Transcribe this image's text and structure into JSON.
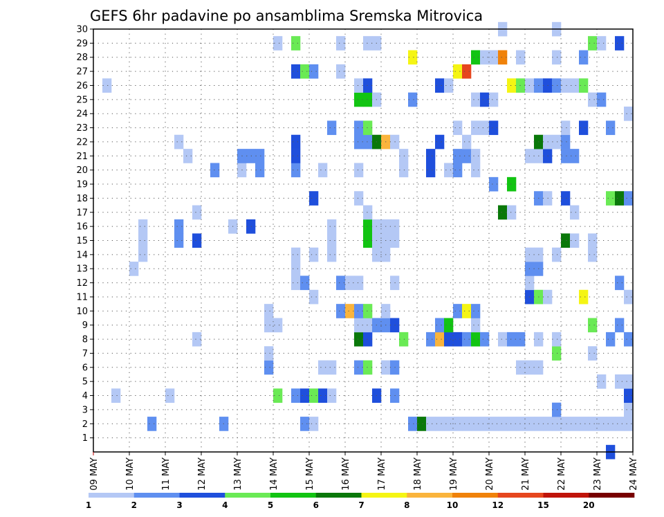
{
  "chart_data": {
    "type": "heatmap",
    "title": "GEFS 6hr padavine po ansamblima Sremska Mitrovica",
    "x_tick_labels": [
      "09 MAY",
      "10 MAY",
      "11 MAY",
      "12 MAY",
      "13 MAY",
      "14 MAY",
      "15 MAY",
      "16 MAY",
      "17 MAY",
      "18 MAY",
      "19 MAY",
      "20 MAY",
      "21 MAY",
      "22 MAY",
      "23 MAY",
      "24 MAY"
    ],
    "y_tick_labels": [
      "1",
      "2",
      "3",
      "4",
      "5",
      "6",
      "7",
      "8",
      "9",
      "10",
      "11",
      "12",
      "13",
      "14",
      "15",
      "16",
      "17",
      "18",
      "19",
      "20",
      "21",
      "22",
      "23",
      "24",
      "25",
      "26",
      "27",
      "28",
      "29",
      "30"
    ],
    "x_range": [
      "09 MAY 00Z",
      "24 MAY 00Z"
    ],
    "time_step_hours": 6,
    "y_range": [
      0,
      30
    ],
    "grid": true,
    "colorbar": {
      "labels": [
        "1",
        "2",
        "3",
        "4",
        "5",
        "6",
        "7",
        "8",
        "10",
        "12",
        "15",
        "20"
      ],
      "colors": [
        "#b4c8f5",
        "#5f8ff0",
        "#1f4fdc",
        "#6aea55",
        "#12c412",
        "#0a780a",
        "#f5f514",
        "#fab43c",
        "#f0820a",
        "#e6461e",
        "#c0140a",
        "#780000"
      ]
    },
    "members": [
      {
        "member": 2,
        "cells": [
          [
            6,
            "#5f8ff0"
          ],
          [
            14,
            "#5f8ff0"
          ],
          [
            23,
            "#5f8ff0"
          ],
          [
            24,
            "#b4c8f5"
          ],
          [
            35,
            "#5f8ff0"
          ],
          [
            36,
            "#0a780a"
          ],
          [
            37,
            "#b4c8f5"
          ],
          [
            38,
            "#b4c8f5"
          ],
          [
            39,
            "#b4c8f5"
          ],
          [
            40,
            "#b4c8f5"
          ],
          [
            41,
            "#b4c8f5"
          ],
          [
            42,
            "#b4c8f5"
          ],
          [
            43,
            "#b4c8f5"
          ],
          [
            44,
            "#b4c8f5"
          ],
          [
            45,
            "#b4c8f5"
          ],
          [
            46,
            "#b4c8f5"
          ],
          [
            47,
            "#b4c8f5"
          ],
          [
            48,
            "#b4c8f5"
          ],
          [
            49,
            "#b4c8f5"
          ],
          [
            50,
            "#b4c8f5"
          ],
          [
            51,
            "#b4c8f5"
          ],
          [
            52,
            "#b4c8f5"
          ],
          [
            53,
            "#b4c8f5"
          ],
          [
            54,
            "#b4c8f5"
          ],
          [
            55,
            "#b4c8f5"
          ],
          [
            56,
            "#b4c8f5"
          ],
          [
            57,
            "#b4c8f5"
          ],
          [
            58,
            "#b4c8f5"
          ],
          [
            59,
            "#b4c8f5"
          ]
        ]
      },
      {
        "member": 3,
        "cells": [
          [
            51,
            "#5f8ff0"
          ],
          [
            59,
            "#b4c8f5"
          ]
        ]
      },
      {
        "member": 4,
        "cells": [
          [
            2,
            "#b4c8f5"
          ],
          [
            8,
            "#b4c8f5"
          ],
          [
            20,
            "#6aea55"
          ],
          [
            22,
            "#5f8ff0"
          ],
          [
            23,
            "#1f4fdc"
          ],
          [
            24,
            "#6aea55"
          ],
          [
            25,
            "#1f4fdc"
          ],
          [
            26,
            "#b4c8f5"
          ],
          [
            31,
            "#1f4fdc"
          ],
          [
            33,
            "#5f8ff0"
          ],
          [
            59,
            "#1f4fdc"
          ]
        ]
      },
      {
        "member": 5,
        "cells": [
          [
            56,
            "#b4c8f5"
          ],
          [
            58,
            "#b4c8f5"
          ],
          [
            59,
            "#b4c8f5"
          ]
        ]
      },
      {
        "member": 6,
        "cells": [
          [
            19,
            "#5f8ff0"
          ],
          [
            25,
            "#b4c8f5"
          ],
          [
            26,
            "#b4c8f5"
          ],
          [
            29,
            "#5f8ff0"
          ],
          [
            30,
            "#6aea55"
          ],
          [
            32,
            "#b4c8f5"
          ],
          [
            33,
            "#5f8ff0"
          ],
          [
            47,
            "#b4c8f5"
          ],
          [
            48,
            "#b4c8f5"
          ],
          [
            49,
            "#b4c8f5"
          ]
        ]
      },
      {
        "member": 7,
        "cells": [
          [
            19,
            "#b4c8f5"
          ],
          [
            51,
            "#6aea55"
          ],
          [
            55,
            "#b4c8f5"
          ]
        ]
      },
      {
        "member": 8,
        "cells": [
          [
            11,
            "#b4c8f5"
          ],
          [
            29,
            "#0a780a"
          ],
          [
            30,
            "#1f4fdc"
          ],
          [
            34,
            "#6aea55"
          ],
          [
            37,
            "#5f8ff0"
          ],
          [
            38,
            "#fab43c"
          ],
          [
            39,
            "#1f4fdc"
          ],
          [
            40,
            "#1f4fdc"
          ],
          [
            41,
            "#5f8ff0"
          ],
          [
            42,
            "#12c412"
          ],
          [
            43,
            "#5f8ff0"
          ],
          [
            45,
            "#b4c8f5"
          ],
          [
            46,
            "#5f8ff0"
          ],
          [
            47,
            "#5f8ff0"
          ],
          [
            49,
            "#b4c8f5"
          ],
          [
            51,
            "#b4c8f5"
          ],
          [
            57,
            "#5f8ff0"
          ],
          [
            59,
            "#5f8ff0"
          ]
        ]
      },
      {
        "member": 9,
        "cells": [
          [
            19,
            "#b4c8f5"
          ],
          [
            20,
            "#b4c8f5"
          ],
          [
            29,
            "#b4c8f5"
          ],
          [
            30,
            "#b4c8f5"
          ],
          [
            31,
            "#5f8ff0"
          ],
          [
            32,
            "#5f8ff0"
          ],
          [
            33,
            "#1f4fdc"
          ],
          [
            38,
            "#5f8ff0"
          ],
          [
            39,
            "#12c412"
          ],
          [
            42,
            "#b4c8f5"
          ],
          [
            55,
            "#6aea55"
          ],
          [
            58,
            "#5f8ff0"
          ]
        ]
      },
      {
        "member": 10,
        "cells": [
          [
            19,
            "#b4c8f5"
          ],
          [
            27,
            "#5f8ff0"
          ],
          [
            28,
            "#fab43c"
          ],
          [
            29,
            "#5f8ff0"
          ],
          [
            30,
            "#6aea55"
          ],
          [
            32,
            "#b4c8f5"
          ],
          [
            40,
            "#5f8ff0"
          ],
          [
            41,
            "#f5f514"
          ],
          [
            42,
            "#5f8ff0"
          ]
        ]
      },
      {
        "member": 11,
        "cells": [
          [
            24,
            "#b4c8f5"
          ],
          [
            48,
            "#1f4fdc"
          ],
          [
            49,
            "#6aea55"
          ],
          [
            50,
            "#b4c8f5"
          ],
          [
            54,
            "#f5f514"
          ],
          [
            59,
            "#b4c8f5"
          ]
        ]
      },
      {
        "member": 12,
        "cells": [
          [
            22,
            "#b4c8f5"
          ],
          [
            23,
            "#5f8ff0"
          ],
          [
            27,
            "#5f8ff0"
          ],
          [
            28,
            "#b4c8f5"
          ],
          [
            29,
            "#b4c8f5"
          ],
          [
            33,
            "#b4c8f5"
          ],
          [
            48,
            "#b4c8f5"
          ],
          [
            58,
            "#5f8ff0"
          ]
        ]
      },
      {
        "member": 13,
        "cells": [
          [
            4,
            "#b4c8f5"
          ],
          [
            22,
            "#b4c8f5"
          ],
          [
            48,
            "#5f8ff0"
          ],
          [
            49,
            "#5f8ff0"
          ]
        ]
      },
      {
        "member": 14,
        "cells": [
          [
            5,
            "#b4c8f5"
          ],
          [
            22,
            "#b4c8f5"
          ],
          [
            24,
            "#b4c8f5"
          ],
          [
            26,
            "#b4c8f5"
          ],
          [
            31,
            "#b4c8f5"
          ],
          [
            32,
            "#b4c8f5"
          ],
          [
            48,
            "#b4c8f5"
          ],
          [
            49,
            "#b4c8f5"
          ],
          [
            51,
            "#b4c8f5"
          ],
          [
            55,
            "#b4c8f5"
          ]
        ]
      },
      {
        "member": 15,
        "cells": [
          [
            5,
            "#b4c8f5"
          ],
          [
            9,
            "#5f8ff0"
          ],
          [
            11,
            "#1f4fdc"
          ],
          [
            26,
            "#b4c8f5"
          ],
          [
            30,
            "#12c412"
          ],
          [
            31,
            "#b4c8f5"
          ],
          [
            32,
            "#b4c8f5"
          ],
          [
            33,
            "#b4c8f5"
          ],
          [
            52,
            "#0a780a"
          ],
          [
            53,
            "#b4c8f5"
          ],
          [
            55,
            "#b4c8f5"
          ]
        ]
      },
      {
        "member": 16,
        "cells": [
          [
            5,
            "#b4c8f5"
          ],
          [
            9,
            "#5f8ff0"
          ],
          [
            15,
            "#b4c8f5"
          ],
          [
            17,
            "#1f4fdc"
          ],
          [
            26,
            "#b4c8f5"
          ],
          [
            30,
            "#12c412"
          ],
          [
            31,
            "#b4c8f5"
          ],
          [
            32,
            "#b4c8f5"
          ],
          [
            33,
            "#b4c8f5"
          ]
        ]
      },
      {
        "member": 17,
        "cells": [
          [
            11,
            "#b4c8f5"
          ],
          [
            30,
            "#b4c8f5"
          ],
          [
            45,
            "#0a780a"
          ],
          [
            46,
            "#b4c8f5"
          ],
          [
            53,
            "#b4c8f5"
          ]
        ]
      },
      {
        "member": 18,
        "cells": [
          [
            24,
            "#1f4fdc"
          ],
          [
            29,
            "#b4c8f5"
          ],
          [
            49,
            "#5f8ff0"
          ],
          [
            50,
            "#b4c8f5"
          ],
          [
            52,
            "#1f4fdc"
          ],
          [
            57,
            "#6aea55"
          ],
          [
            58,
            "#0a780a"
          ],
          [
            59,
            "#5f8ff0"
          ]
        ]
      },
      {
        "member": 19,
        "cells": [
          [
            44,
            "#5f8ff0"
          ],
          [
            46,
            "#12c412"
          ]
        ]
      },
      {
        "member": 20,
        "cells": [
          [
            13,
            "#5f8ff0"
          ],
          [
            16,
            "#b4c8f5"
          ],
          [
            18,
            "#5f8ff0"
          ],
          [
            22,
            "#5f8ff0"
          ],
          [
            25,
            "#b4c8f5"
          ],
          [
            29,
            "#b4c8f5"
          ],
          [
            34,
            "#b4c8f5"
          ],
          [
            37,
            "#1f4fdc"
          ],
          [
            39,
            "#b4c8f5"
          ],
          [
            40,
            "#5f8ff0"
          ],
          [
            42,
            "#b4c8f5"
          ]
        ]
      },
      {
        "member": 21,
        "cells": [
          [
            10,
            "#b4c8f5"
          ],
          [
            16,
            "#5f8ff0"
          ],
          [
            17,
            "#5f8ff0"
          ],
          [
            18,
            "#5f8ff0"
          ],
          [
            22,
            "#1f4fdc"
          ],
          [
            34,
            "#b4c8f5"
          ],
          [
            37,
            "#1f4fdc"
          ],
          [
            40,
            "#5f8ff0"
          ],
          [
            41,
            "#5f8ff0"
          ],
          [
            42,
            "#b4c8f5"
          ],
          [
            48,
            "#b4c8f5"
          ],
          [
            49,
            "#b4c8f5"
          ],
          [
            50,
            "#1f4fdc"
          ],
          [
            52,
            "#5f8ff0"
          ],
          [
            53,
            "#5f8ff0"
          ]
        ]
      },
      {
        "member": 22,
        "cells": [
          [
            9,
            "#b4c8f5"
          ],
          [
            22,
            "#1f4fdc"
          ],
          [
            29,
            "#5f8ff0"
          ],
          [
            30,
            "#5f8ff0"
          ],
          [
            31,
            "#0a780a"
          ],
          [
            32,
            "#fab43c"
          ],
          [
            33,
            "#b4c8f5"
          ],
          [
            38,
            "#1f4fdc"
          ],
          [
            41,
            "#b4c8f5"
          ],
          [
            49,
            "#0a780a"
          ],
          [
            50,
            "#b4c8f5"
          ],
          [
            51,
            "#b4c8f5"
          ],
          [
            52,
            "#5f8ff0"
          ]
        ]
      },
      {
        "member": 23,
        "cells": [
          [
            26,
            "#5f8ff0"
          ],
          [
            29,
            "#5f8ff0"
          ],
          [
            30,
            "#6aea55"
          ],
          [
            40,
            "#b4c8f5"
          ],
          [
            42,
            "#b4c8f5"
          ],
          [
            43,
            "#b4c8f5"
          ],
          [
            44,
            "#1f4fdc"
          ],
          [
            52,
            "#b4c8f5"
          ],
          [
            54,
            "#1f4fdc"
          ],
          [
            57,
            "#5f8ff0"
          ]
        ]
      },
      {
        "member": 24,
        "cells": [
          [
            59,
            "#b4c8f5"
          ]
        ]
      },
      {
        "member": 25,
        "cells": [
          [
            29,
            "#12c412"
          ],
          [
            30,
            "#12c412"
          ],
          [
            31,
            "#b4c8f5"
          ],
          [
            35,
            "#5f8ff0"
          ],
          [
            42,
            "#b4c8f5"
          ],
          [
            43,
            "#1f4fdc"
          ],
          [
            44,
            "#b4c8f5"
          ],
          [
            55,
            "#b4c8f5"
          ],
          [
            56,
            "#5f8ff0"
          ]
        ]
      },
      {
        "member": 26,
        "cells": [
          [
            1,
            "#b4c8f5"
          ],
          [
            29,
            "#b4c8f5"
          ],
          [
            30,
            "#1f4fdc"
          ],
          [
            38,
            "#1f4fdc"
          ],
          [
            39,
            "#b4c8f5"
          ],
          [
            46,
            "#f5f514"
          ],
          [
            47,
            "#6aea55"
          ],
          [
            48,
            "#b4c8f5"
          ],
          [
            49,
            "#5f8ff0"
          ],
          [
            50,
            "#1f4fdc"
          ],
          [
            51,
            "#5f8ff0"
          ],
          [
            52,
            "#b4c8f5"
          ],
          [
            53,
            "#b4c8f5"
          ],
          [
            54,
            "#6aea55"
          ]
        ]
      },
      {
        "member": 27,
        "cells": [
          [
            22,
            "#1f4fdc"
          ],
          [
            23,
            "#6aea55"
          ],
          [
            24,
            "#5f8ff0"
          ],
          [
            27,
            "#b4c8f5"
          ],
          [
            40,
            "#f5f514"
          ],
          [
            41,
            "#e6461e"
          ]
        ]
      },
      {
        "member": 28,
        "cells": [
          [
            35,
            "#f5f514"
          ],
          [
            42,
            "#12c412"
          ],
          [
            43,
            "#b4c8f5"
          ],
          [
            44,
            "#b4c8f5"
          ],
          [
            45,
            "#f0820a"
          ],
          [
            47,
            "#b4c8f5"
          ],
          [
            51,
            "#b4c8f5"
          ],
          [
            54,
            "#5f8ff0"
          ]
        ]
      },
      {
        "member": 29,
        "cells": [
          [
            20,
            "#b4c8f5"
          ],
          [
            22,
            "#6aea55"
          ],
          [
            27,
            "#b4c8f5"
          ],
          [
            30,
            "#b4c8f5"
          ],
          [
            31,
            "#b4c8f5"
          ],
          [
            55,
            "#6aea55"
          ],
          [
            56,
            "#b4c8f5"
          ],
          [
            58,
            "#1f4fdc"
          ]
        ]
      },
      {
        "member": 30,
        "cells": [
          [
            45,
            "#b4c8f5"
          ],
          [
            51,
            "#b4c8f5"
          ]
        ]
      },
      {
        "member": 0,
        "cells": [
          [
            57,
            "#1f4fdc"
          ]
        ]
      }
    ]
  }
}
